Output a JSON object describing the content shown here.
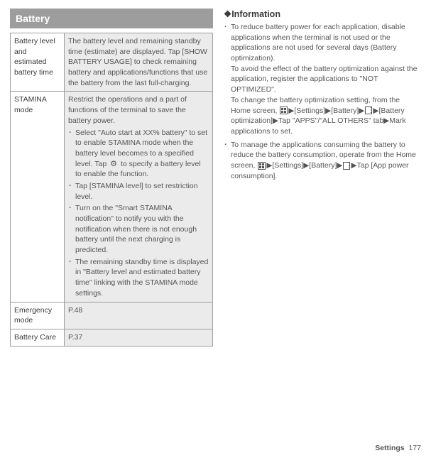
{
  "header": "Battery",
  "rows": [
    {
      "label": "Battery level and estimated battery time",
      "desc": "The battery level and remaining standby time (estimate) are displayed. Tap [SHOW BATTERY USAGE] to check remaining battery and applications/functions that use the battery from the last full-charging."
    },
    {
      "label": "STAMINA mode",
      "desc_intro": "Restrict the operations and a part of functions of the terminal to save the battery power.",
      "bullets": [
        "Select \"Auto start at XX% battery\" to set to enable STAMINA mode when the battery level becomes to a specified level. Tap |GEAR| to specify a battery level to enable the function.",
        "Tap [STAMINA level] to set restriction level.",
        "Turn on the \"Smart STAMINA notification\" to notify you with the notification when there is not enough battery until the next charging is predicted.",
        "The remaining standby time is displayed in \"Battery level and estimated battery time\" linking with the STAMINA mode settings."
      ]
    },
    {
      "label": "Emergency mode",
      "desc": "P.48"
    },
    {
      "label": "Battery Care",
      "desc": "P.37"
    }
  ],
  "info_title": "❖Information",
  "info_items": [
    {
      "p1": "To reduce battery power for each application, disable applications when the terminal is not used or the applications are not used for several days (Battery optimization).",
      "p2": "To avoid the effect of the battery optimization against the application, register the applications to \"NOT OPTIMIZED\".",
      "p3_pre": "To change the battery optimization setting, from the Home screen, ",
      "p3_post": "[Battery optimization]▶Tap \"APPS\"/\"ALL OTHERS\" tab▶Mark applications to set.",
      "path": "▶[Settings]▶[Battery]▶",
      "path_end": "▶"
    },
    {
      "p1_pre": "To manage the applications consuming the battery to reduce the battery consumption, operate from the Home screen, ",
      "p1_post": "▶Tap [App power consumption].",
      "path": "▶[Settings]▶[Battery]▶"
    }
  ],
  "footer_label": "Settings",
  "footer_page": "177"
}
